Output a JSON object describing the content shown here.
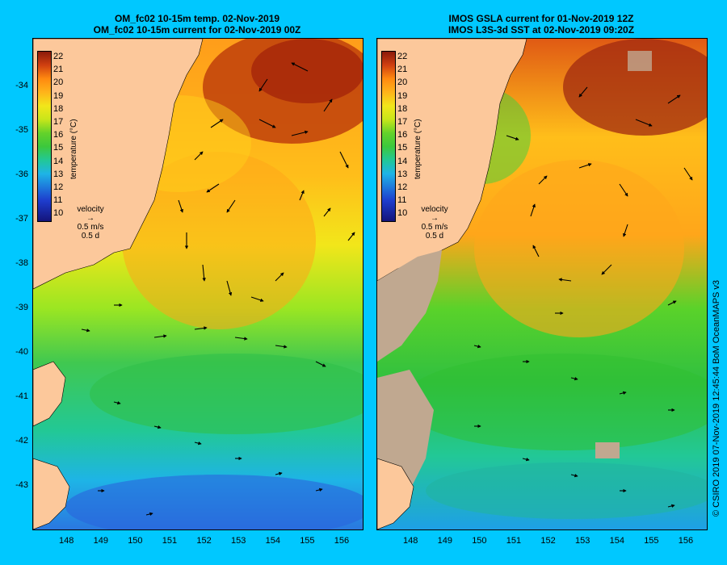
{
  "left_panel": {
    "title_line1": "OM_fc02 10-15m temp. 02-Nov-2019",
    "title_line2": "OM_fc02 10-15m current for 02-Nov-2019 00Z",
    "velocity_label": "velocity",
    "velocity_scale": "0.5 m/s",
    "velocity_time": "0.5 d"
  },
  "right_panel": {
    "title_line1": "IMOS GSLA current for 01-Nov-2019 12Z",
    "title_line2": "IMOS L3S-3d SST at 02-Nov-2019 09:20Z",
    "velocity_label": "velocity",
    "velocity_scale": "0.5 m/s",
    "velocity_time": "0.5 d"
  },
  "colorbar": {
    "ticks": [
      "22",
      "21",
      "20",
      "19",
      "18",
      "17",
      "16",
      "15",
      "14",
      "13",
      "12",
      "11",
      "10"
    ],
    "unit_label": "temperature (°C)"
  },
  "axes": {
    "x_ticks": [
      "148",
      "149",
      "150",
      "151",
      "152",
      "153",
      "154",
      "155",
      "156"
    ],
    "y_ticks": [
      "-34",
      "-35",
      "-36",
      "-37",
      "-38",
      "-39",
      "-40",
      "-41",
      "-42",
      "-43"
    ]
  },
  "credit": "© CSIRO 2019   07-Nov-2019 12:45:44 BoM OceanMAPS v3",
  "colors": {
    "background": "#00c8ff",
    "land": "#fcc89b",
    "no_data": "#c0a890"
  }
}
